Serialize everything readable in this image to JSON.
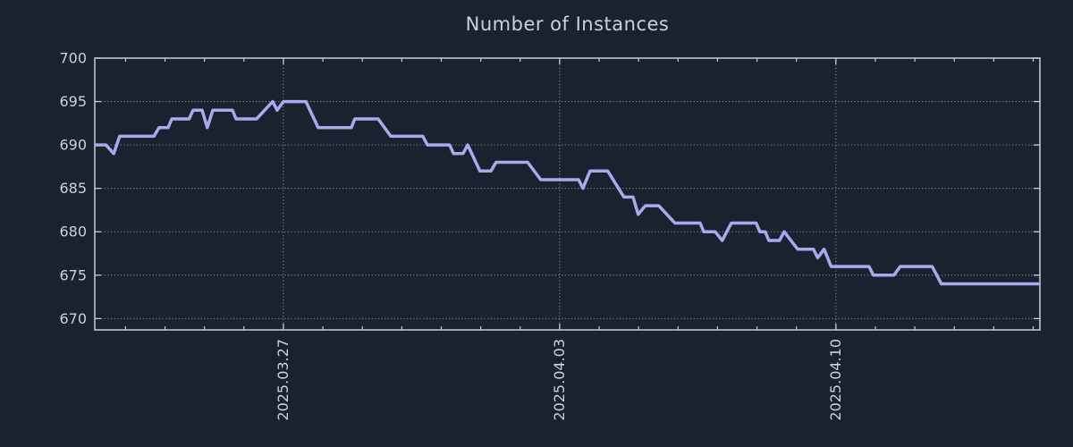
{
  "chart_data": {
    "type": "line",
    "title": "Number of Instances",
    "x_axis": {
      "unit": "days relative to 2025.03.27",
      "range": [
        -4.78,
        19.17
      ],
      "major_ticks": [
        {
          "pos": 0,
          "label": "2025.03.27"
        },
        {
          "pos": 7,
          "label": "2025.04.03"
        },
        {
          "pos": 14,
          "label": "2025.04.10"
        }
      ],
      "minor_tick_interval": 1,
      "label_rotation_deg": 90
    },
    "y_axis": {
      "range": [
        668.7,
        700
      ],
      "ticks": [
        670,
        675,
        680,
        685,
        690,
        695,
        700
      ],
      "gridline_ticks": [
        670,
        675,
        680,
        685,
        690,
        695
      ]
    },
    "grid": {
      "style": "dotted",
      "x_on_major_ticks": true,
      "y_on_ticks": true
    },
    "series": [
      {
        "name": "instances",
        "color": "#a7abee",
        "line_width": 3.5,
        "points": [
          [
            -4.78,
            690
          ],
          [
            -4.5,
            690
          ],
          [
            -4.3,
            689
          ],
          [
            -4.15,
            691
          ],
          [
            -3.28,
            691
          ],
          [
            -3.15,
            692
          ],
          [
            -2.92,
            692
          ],
          [
            -2.83,
            693
          ],
          [
            -2.39,
            693
          ],
          [
            -2.29,
            694
          ],
          [
            -2.06,
            694
          ],
          [
            -1.93,
            692
          ],
          [
            -1.79,
            694
          ],
          [
            -1.29,
            694
          ],
          [
            -1.2,
            693
          ],
          [
            -0.68,
            693
          ],
          [
            -0.27,
            695
          ],
          [
            -0.16,
            694
          ],
          [
            0.0,
            695
          ],
          [
            0.57,
            695
          ],
          [
            0.88,
            692
          ],
          [
            1.72,
            692
          ],
          [
            1.81,
            693
          ],
          [
            2.4,
            693
          ],
          [
            2.72,
            691
          ],
          [
            3.53,
            691
          ],
          [
            3.65,
            690
          ],
          [
            4.21,
            690
          ],
          [
            4.31,
            689
          ],
          [
            4.55,
            689
          ],
          [
            4.67,
            690
          ],
          [
            4.98,
            687
          ],
          [
            5.26,
            687
          ],
          [
            5.39,
            688
          ],
          [
            6.19,
            688
          ],
          [
            6.52,
            686
          ],
          [
            7.48,
            686
          ],
          [
            7.59,
            685
          ],
          [
            7.77,
            687
          ],
          [
            8.22,
            687
          ],
          [
            8.63,
            684
          ],
          [
            8.86,
            684
          ],
          [
            8.99,
            682
          ],
          [
            9.17,
            683
          ],
          [
            9.51,
            683
          ],
          [
            9.92,
            681
          ],
          [
            10.56,
            681
          ],
          [
            10.65,
            680
          ],
          [
            10.94,
            680
          ],
          [
            11.12,
            679
          ],
          [
            11.35,
            681
          ],
          [
            11.98,
            681
          ],
          [
            12.07,
            680
          ],
          [
            12.21,
            680
          ],
          [
            12.3,
            679
          ],
          [
            12.57,
            679
          ],
          [
            12.69,
            680
          ],
          [
            13.03,
            678
          ],
          [
            13.43,
            678
          ],
          [
            13.54,
            677
          ],
          [
            13.7,
            678
          ],
          [
            13.88,
            676
          ],
          [
            14.84,
            676
          ],
          [
            14.95,
            675
          ],
          [
            15.47,
            675
          ],
          [
            15.63,
            676
          ],
          [
            16.44,
            676
          ],
          [
            16.67,
            674
          ],
          [
            19.17,
            674
          ]
        ]
      }
    ],
    "colors": {
      "background": "#1a2230",
      "axis": "#c9ced4",
      "grid": "#a6aaae",
      "tick_labels": "#ccd1d7",
      "title": "#ccd1d7"
    }
  }
}
